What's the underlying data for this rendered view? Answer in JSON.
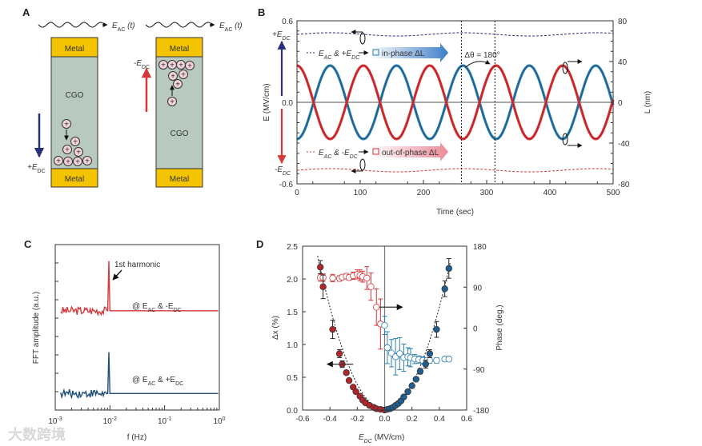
{
  "colors": {
    "red": "#d8363a",
    "blue": "#2c7fb0",
    "navy": "#2a2f7a",
    "metal": "#f5c400",
    "cgo": "#b8c9bf",
    "ion": "#f3d3dc"
  },
  "panel_a": {
    "label": "A",
    "eac": "E",
    "eac_sub": "AC",
    "eac_t": " (t)",
    "metal": "Metal",
    "cgo": "CGO",
    "plus_edc": "+E",
    "minus_edc": "-E",
    "dc_sub": "DC",
    "ion_symbol": "+"
  },
  "watermark": "大数跨境",
  "chart_data": [
    {
      "id": "B",
      "type": "line",
      "label": "B",
      "xlabel": "Time (sec)",
      "ylabel": "E (MV/cm)",
      "y2label": "L (nm)",
      "xlim": [
        0,
        500
      ],
      "ylim": [
        -0.6,
        0.6
      ],
      "y2lim": [
        -80,
        80
      ],
      "xticks": [
        "0",
        "100",
        "200",
        "300",
        "400",
        "500"
      ],
      "yticks": [
        "0.6",
        "0.0",
        "-0.6"
      ],
      "y2ticks": [
        "80",
        "40",
        "0",
        "-40",
        "-80"
      ],
      "ylabels_extra": {
        "plus": "+E",
        "minus": "-E",
        "sub": "DC"
      },
      "series": [
        {
          "name": "E_AC & +E_DC (field)",
          "axis": "left",
          "style": "dashed",
          "color": "#2a2f7a",
          "offset": 0.5,
          "amp": 0.012,
          "period": 210
        },
        {
          "name": "E_AC & -E_DC (field)",
          "axis": "left",
          "style": "dashed",
          "color": "#d8363a",
          "offset": -0.5,
          "amp": 0.012,
          "period": 210
        },
        {
          "name": "in-phase ΔL",
          "axis": "right",
          "color": "#2c7fb0",
          "amp": -36,
          "period": 105
        },
        {
          "name": "out-of-phase ΔL",
          "axis": "right",
          "color": "#d8363a",
          "amp": 36,
          "period": 105
        }
      ],
      "legend": [
        {
          "pre": "E",
          "sub1": "AC",
          "mid": " & +E",
          "sub2": "DC",
          "post": "in-phase ΔL"
        },
        {
          "pre": "E",
          "sub1": "AC",
          "mid": " & -E",
          "sub2": "DC",
          "post": "out-of-phase ΔL"
        }
      ],
      "vlines": [
        260,
        313
      ],
      "annotation": "Δθ = 180°"
    },
    {
      "id": "C",
      "type": "line",
      "label": "C",
      "xscale": "log",
      "xlabel": "f (Hz)",
      "ylabel": "FFT amplitude (a.u.)",
      "xlim": [
        0.001,
        1
      ],
      "xticks": [
        {
          "b": "10",
          "e": "-3"
        },
        {
          "b": "10",
          "e": "-2"
        },
        {
          "b": "10",
          "e": "-1"
        },
        {
          "b": "10",
          "e": "0"
        }
      ],
      "series": [
        {
          "name": "@ E_AC & -E_DC",
          "color": "#d8363a",
          "baseline": 0.6,
          "peak_f": 0.0095,
          "peak": 0.9
        },
        {
          "name": "@ E_AC & +E_DC",
          "color": "#1e4f7a",
          "baseline": 0.1,
          "peak_f": 0.0095,
          "peak": 0.35
        }
      ],
      "labels": [
        {
          "pre": "@ E",
          "s1": "AC",
          "mid": " & -E",
          "s2": "DC"
        },
        {
          "pre": "@ E",
          "s1": "AC",
          "mid": " & +E",
          "s2": "DC"
        }
      ],
      "annotation": "1st harmonic"
    },
    {
      "id": "D",
      "type": "scatter",
      "label": "D",
      "xlabel": "E",
      "xlabel_sub": "DC",
      "xlabel_unit": " (MV/cm)",
      "ylabel": "Δx (%)",
      "y2label": "Phase (deg.)",
      "xlim": [
        -0.6,
        0.6
      ],
      "ylim": [
        0,
        2.5
      ],
      "y2lim": [
        -180,
        180
      ],
      "xticks": [
        "-0.6",
        "-0.4",
        "-0.2",
        "0.0",
        "0.2",
        "0.4",
        "0.6"
      ],
      "yticks": [
        "0.0",
        "0.5",
        "1.0",
        "1.5",
        "2.0",
        "2.5"
      ],
      "y2ticks": [
        "180",
        "90",
        "0",
        "-90",
        "-180"
      ],
      "strain_neg": [
        [
          -0.47,
          2.18,
          0.1
        ],
        [
          -0.45,
          1.88,
          0.18
        ],
        [
          -0.38,
          1.23,
          0.14
        ],
        [
          -0.33,
          0.86,
          0.06
        ],
        [
          -0.31,
          0.7,
          0.05
        ],
        [
          -0.28,
          0.57,
          0.03
        ],
        [
          -0.26,
          0.45,
          0.03
        ],
        [
          -0.23,
          0.35,
          0.02
        ],
        [
          -0.21,
          0.28,
          0.02
        ],
        [
          -0.18,
          0.21,
          0.02
        ],
        [
          -0.16,
          0.15,
          0.02
        ],
        [
          -0.14,
          0.11,
          0.01
        ],
        [
          -0.11,
          0.07,
          0.01
        ],
        [
          -0.08,
          0.04,
          0.01
        ],
        [
          -0.06,
          0.02,
          0.01
        ],
        [
          -0.03,
          0.01,
          0.01
        ],
        [
          0,
          0,
          0
        ]
      ],
      "strain_pos": [
        [
          0.02,
          0.01,
          0.01
        ],
        [
          0.04,
          0.02,
          0.01
        ],
        [
          0.06,
          0.04,
          0.01
        ],
        [
          0.08,
          0.07,
          0.01
        ],
        [
          0.1,
          0.1,
          0.01
        ],
        [
          0.12,
          0.14,
          0.02
        ],
        [
          0.14,
          0.2,
          0.02
        ],
        [
          0.17,
          0.28,
          0.02
        ],
        [
          0.2,
          0.37,
          0.02
        ],
        [
          0.23,
          0.47,
          0.03
        ],
        [
          0.26,
          0.59,
          0.04
        ],
        [
          0.3,
          0.7,
          0.06
        ],
        [
          0.33,
          0.86,
          0.06
        ],
        [
          0.38,
          1.23,
          0.12
        ],
        [
          0.44,
          1.85,
          0.12
        ],
        [
          0.47,
          2.16,
          0.15
        ]
      ],
      "phase_neg": [
        [
          -0.47,
          111,
          8
        ],
        [
          -0.45,
          111,
          8
        ],
        [
          -0.38,
          110,
          8
        ],
        [
          -0.33,
          109,
          6
        ],
        [
          -0.31,
          112,
          5
        ],
        [
          -0.28,
          114,
          6
        ],
        [
          -0.26,
          111,
          6
        ],
        [
          -0.23,
          115,
          8
        ],
        [
          -0.2,
          118,
          10
        ],
        [
          -0.18,
          116,
          12
        ],
        [
          -0.16,
          113,
          12
        ],
        [
          -0.13,
          110,
          25
        ],
        [
          -0.1,
          91,
          30
        ],
        [
          -0.06,
          46,
          40
        ],
        [
          -0.03,
          9,
          55
        ]
      ],
      "phase_neg_outer": [
        [
          -0.12,
          115,
          40
        ]
      ],
      "phase_pos": [
        [
          0.0,
          6,
          20
        ],
        [
          0.02,
          -43,
          35
        ],
        [
          0.05,
          -55,
          30
        ],
        [
          0.08,
          -63,
          40
        ],
        [
          0.11,
          -56,
          35
        ],
        [
          0.14,
          -65,
          30
        ],
        [
          0.17,
          -63,
          20
        ],
        [
          0.19,
          -65,
          20
        ],
        [
          0.22,
          -68,
          10
        ],
        [
          0.25,
          -69,
          8
        ],
        [
          0.28,
          -71,
          8
        ],
        [
          0.31,
          -71,
          6
        ],
        [
          0.33,
          -71,
          6
        ],
        [
          0.38,
          -71,
          6
        ],
        [
          0.44,
          -68,
          5
        ],
        [
          0.47,
          -68,
          5
        ]
      ]
    }
  ]
}
